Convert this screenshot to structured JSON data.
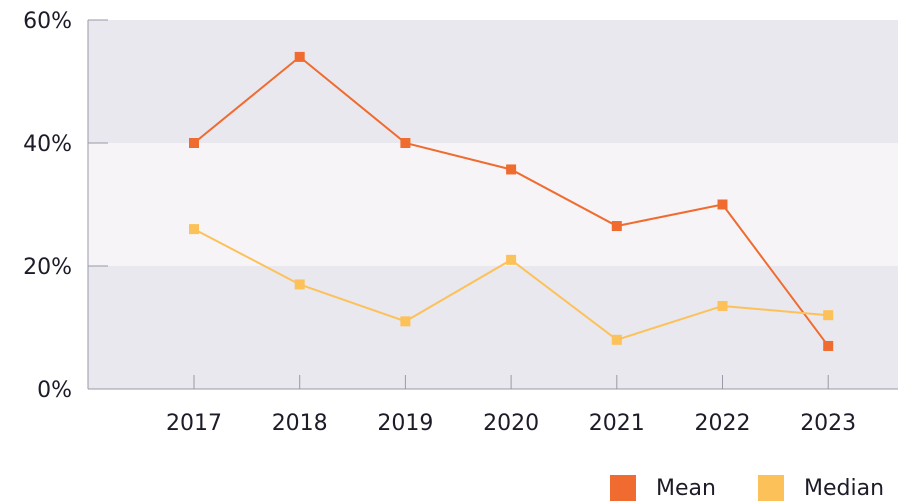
{
  "chart_data": {
    "type": "line",
    "categories": [
      "2017",
      "2018",
      "2019",
      "2020",
      "2021",
      "2022",
      "2023"
    ],
    "series": [
      {
        "name": "Mean",
        "color": "#f06b2f",
        "values": [
          40,
          54,
          40,
          35.7,
          26.5,
          30,
          7
        ]
      },
      {
        "name": "Median",
        "color": "#fdc15a",
        "values": [
          26,
          17,
          11,
          21,
          8,
          13.5,
          12
        ]
      }
    ],
    "ylim": [
      0,
      60
    ],
    "yticks": [
      {
        "value": 0,
        "label": "0%"
      },
      {
        "value": 20,
        "label": "20%"
      },
      {
        "value": 40,
        "label": "40%"
      },
      {
        "value": 60,
        "label": "60%"
      }
    ],
    "band_colors": [
      "#e8e8ee",
      "#f6f4f6"
    ],
    "legend": "bottom-right"
  }
}
